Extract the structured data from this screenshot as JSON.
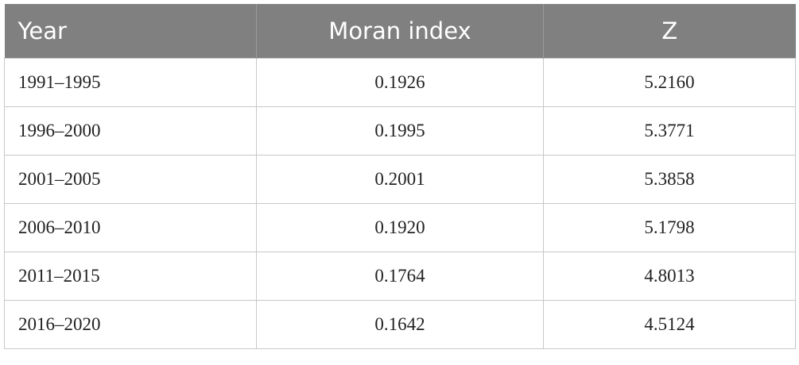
{
  "table": {
    "header": [
      "Year",
      "Moran index",
      "Z"
    ],
    "rows": [
      [
        "1991–1995",
        "0.1926",
        "5.2160"
      ],
      [
        "1996–2000",
        "0.1995",
        "5.3771"
      ],
      [
        "2001–2005",
        "0.2001",
        "5.3858"
      ],
      [
        "2006–2010",
        "0.1920",
        "5.1798"
      ],
      [
        "2011–2015",
        "0.1764",
        "4.8013"
      ],
      [
        "2016–2020",
        "0.1642",
        "4.5124"
      ]
    ]
  }
}
